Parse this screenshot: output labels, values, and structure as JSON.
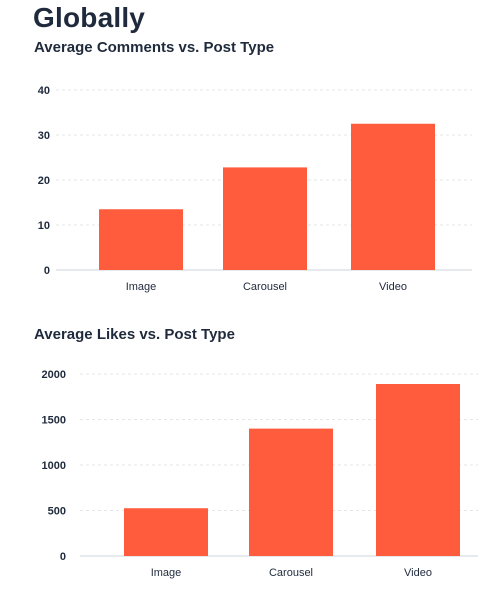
{
  "page": {
    "title": "Globally"
  },
  "colors": {
    "bar": "#ff5c3e",
    "grid": "#e3e6ea",
    "axis": "#cfd4da"
  },
  "chart_data": [
    {
      "type": "bar",
      "title": "Average Comments vs. Post Type",
      "categories": [
        "Image",
        "Carousel",
        "Video"
      ],
      "values": [
        13.5,
        22.8,
        32.5
      ],
      "ylim": [
        0,
        40
      ],
      "yticks": [
        "0",
        "10",
        "20",
        "30",
        "40"
      ],
      "grid": true,
      "legend": "none"
    },
    {
      "type": "bar",
      "title": "Average Likes vs. Post Type",
      "categories": [
        "Image",
        "Carousel",
        "Video"
      ],
      "values": [
        525,
        1400,
        1890
      ],
      "ylim": [
        0,
        2000
      ],
      "yticks": [
        "0",
        "500",
        "1000",
        "1500",
        "2000"
      ],
      "grid": true,
      "legend": "none"
    }
  ]
}
